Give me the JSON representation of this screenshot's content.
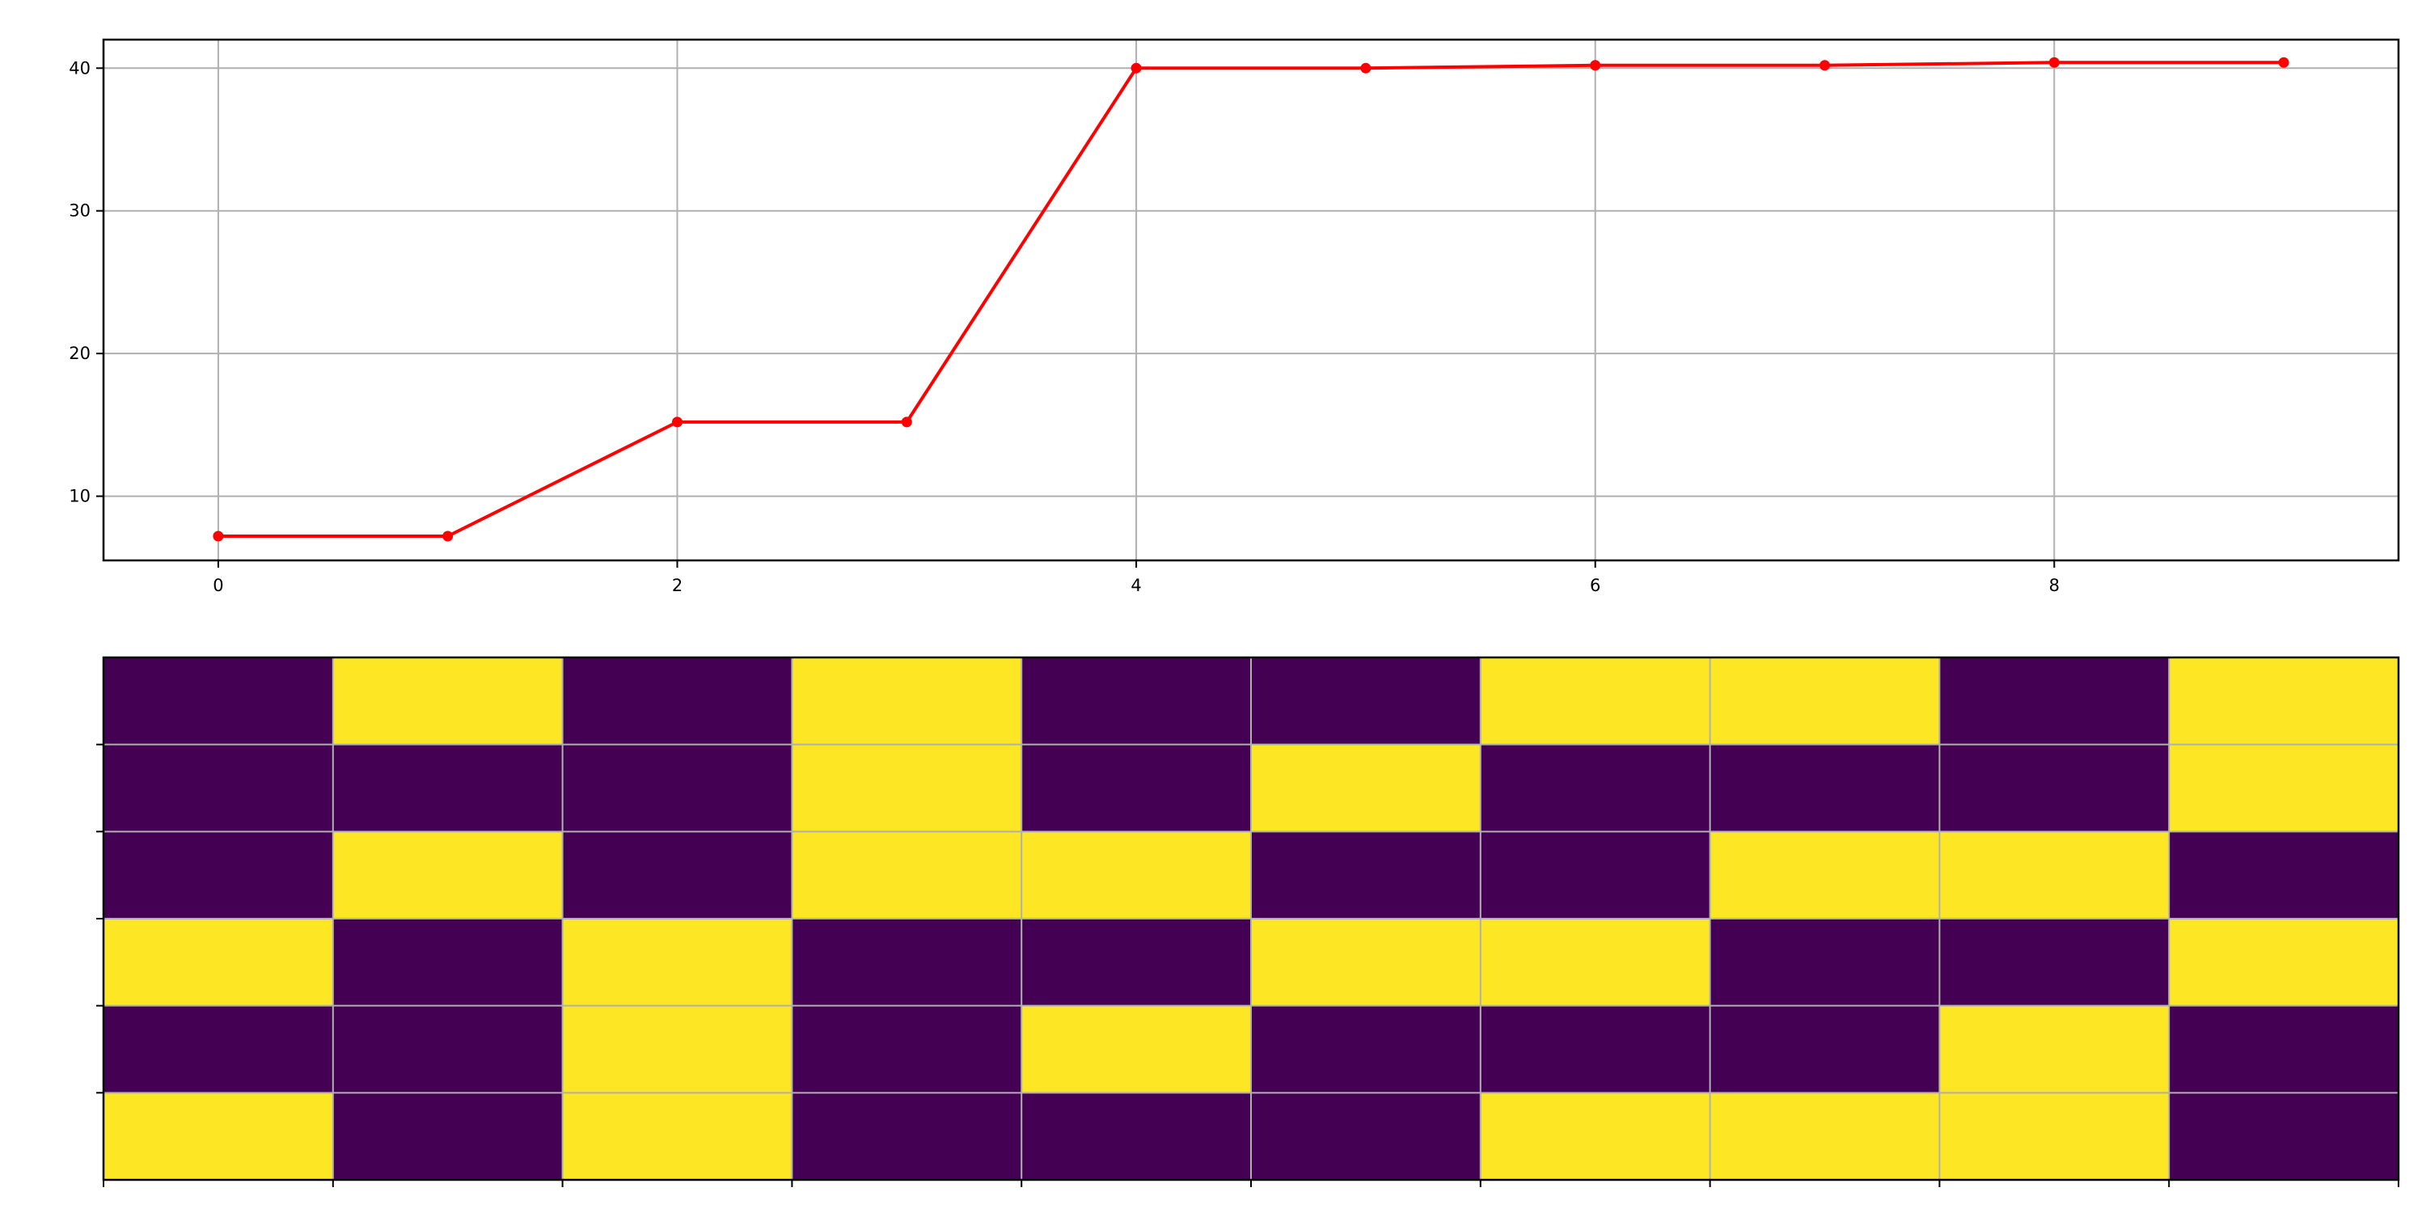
{
  "colors": {
    "line": "#ff0000",
    "grid": "#b0b0b0",
    "axes": "#000000",
    "heat_low": "#440154",
    "heat_high": "#fde725"
  },
  "chart_data": [
    {
      "type": "line",
      "title": "",
      "xlabel": "",
      "ylabel": "",
      "x": [
        0,
        1,
        2,
        3,
        4,
        5,
        6,
        7,
        8,
        9
      ],
      "series": [
        {
          "values": [
            7.2,
            7.2,
            15.2,
            15.2,
            40.0,
            40.0,
            40.2,
            40.2,
            40.4,
            40.4
          ],
          "color": "#ff0000",
          "marker": "circle"
        }
      ],
      "xlim": [
        -0.5,
        9.5
      ],
      "ylim": [
        5.5,
        42
      ],
      "xticks": [
        0,
        2,
        4,
        6,
        8
      ],
      "yticks": [
        10,
        20,
        30,
        40
      ],
      "grid": true
    },
    {
      "type": "heatmap",
      "title": "",
      "xlabel": "",
      "ylabel": "",
      "colormap": "viridis",
      "value_range": [
        0,
        1
      ],
      "grid": true,
      "matrix": [
        [
          0,
          1,
          0,
          1,
          0,
          0,
          1,
          1,
          0,
          1
        ],
        [
          0,
          0,
          0,
          1,
          0,
          1,
          0,
          0,
          0,
          1
        ],
        [
          0,
          1,
          0,
          1,
          1,
          0,
          0,
          1,
          1,
          0
        ],
        [
          1,
          0,
          1,
          0,
          0,
          1,
          1,
          0,
          0,
          1
        ],
        [
          0,
          0,
          1,
          0,
          1,
          0,
          0,
          0,
          1,
          0
        ],
        [
          1,
          0,
          1,
          0,
          0,
          0,
          1,
          1,
          1,
          0
        ]
      ]
    }
  ]
}
